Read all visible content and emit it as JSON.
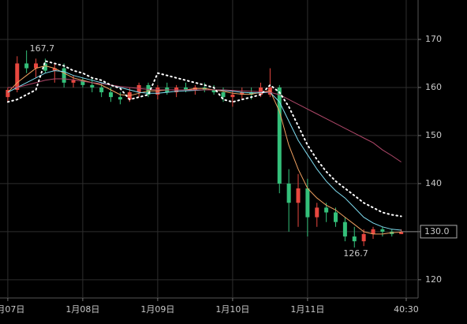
{
  "chart_data": {
    "type": "candlestick",
    "x": [
      0,
      3,
      6,
      9,
      12,
      15,
      18,
      21,
      24,
      27,
      30,
      33,
      36,
      39,
      42,
      45,
      48,
      51,
      54,
      57,
      60,
      63,
      66,
      69,
      72,
      75,
      78,
      81,
      84,
      87,
      90,
      93,
      96,
      99,
      102,
      105,
      108,
      111,
      114,
      117,
      120,
      123,
      126
    ],
    "open": [
      158,
      159.5,
      165,
      164,
      165,
      163.5,
      164,
      161,
      161.5,
      160.5,
      160,
      159,
      158,
      157.5,
      159,
      160.5,
      158.5,
      160,
      159,
      160,
      159.5,
      160,
      159.5,
      159,
      158,
      158.5,
      159,
      158.5,
      158.5,
      160,
      140,
      136,
      139,
      133,
      135,
      134,
      132,
      129,
      128,
      129.5,
      130.5,
      130,
      129.5
    ],
    "high": [
      160,
      166.5,
      167.7,
      166,
      166,
      165,
      165,
      162.5,
      162,
      162,
      161,
      160,
      159,
      160,
      161,
      161,
      160.5,
      161,
      160.5,
      161,
      160.5,
      161,
      160.5,
      160,
      159.5,
      160,
      160,
      161,
      164,
      160.5,
      143,
      142,
      141,
      136,
      136,
      135,
      133,
      131,
      130.5,
      131,
      131,
      130.5,
      130.5
    ],
    "low": [
      157,
      159,
      163,
      162,
      163,
      161,
      160,
      160,
      160,
      159,
      158,
      157,
      156.5,
      157,
      158,
      158,
      157.5,
      158.5,
      158,
      159,
      158.5,
      159,
      158.5,
      157,
      156,
      157.5,
      157.5,
      158,
      158,
      138,
      130,
      131,
      129,
      131,
      132,
      131,
      128,
      126.7,
      127,
      128.5,
      129,
      129,
      129.5
    ],
    "close": [
      159.5,
      165,
      164,
      165,
      163.5,
      164,
      161,
      161.5,
      160.5,
      160,
      159,
      158,
      157.5,
      159,
      160.5,
      158.5,
      160,
      159,
      160,
      159.5,
      160,
      159.5,
      159,
      158,
      158.5,
      159,
      158.5,
      160,
      160,
      140,
      136,
      139,
      133,
      135,
      134,
      132,
      129,
      128,
      129.5,
      130.5,
      130,
      129.5,
      130
    ],
    "up_color": "#e8473f",
    "down_color": "#34c07a",
    "lines": [
      {
        "color": "#f0a060",
        "style": "solid",
        "values": [
          159,
          161,
          162.5,
          164,
          164.5,
          164,
          163,
          162,
          161.5,
          161,
          160.5,
          159.5,
          158.5,
          158.3,
          158.8,
          159.3,
          159.3,
          159.5,
          159.5,
          159.5,
          159.8,
          159.8,
          159.5,
          159.2,
          158.8,
          158.6,
          158.6,
          159,
          159.3,
          155,
          148,
          143,
          139,
          137,
          135.5,
          134.5,
          133,
          131.5,
          130,
          129.5,
          129.5,
          129.8,
          129.9
        ]
      },
      {
        "color": "#7fdcf0",
        "style": "solid",
        "values": [
          159,
          160,
          161,
          162,
          163,
          163.5,
          163.3,
          162.5,
          162,
          161.5,
          161,
          160.5,
          160,
          159.5,
          159,
          158.8,
          158.8,
          159,
          159.2,
          159.3,
          159.4,
          159.5,
          159.5,
          159.4,
          159.2,
          159,
          158.9,
          158.9,
          159,
          157,
          153,
          149,
          146,
          143,
          140.5,
          138.5,
          137,
          135,
          133,
          131.8,
          131,
          130.5,
          130.3
        ]
      },
      {
        "color": "#b0486a",
        "style": "solid",
        "values": [
          160,
          160,
          160.5,
          161,
          161.5,
          161.8,
          161.8,
          161.6,
          161.3,
          161,
          160.8,
          160.5,
          160.2,
          160,
          159.8,
          159.6,
          159.5,
          159.5,
          159.5,
          159.5,
          159.5,
          159.5,
          159.5,
          159.5,
          159.4,
          159.3,
          159.2,
          159.1,
          159,
          158.5,
          157.5,
          156.5,
          155.5,
          154.5,
          153.5,
          152.5,
          151.5,
          150.5,
          149.5,
          148.5,
          147,
          145.8,
          144.5
        ]
      },
      {
        "color": "#ffffff",
        "style": "dotted",
        "values": [
          157,
          157.5,
          158.5,
          159.5,
          165.5,
          165,
          164.5,
          163.5,
          163,
          162,
          161.5,
          160.5,
          159.8,
          157.5,
          158,
          158.5,
          163,
          162.5,
          162,
          161.5,
          161,
          160.5,
          160,
          157.5,
          157,
          157.5,
          158,
          158.5,
          160.5,
          159,
          156,
          152,
          148,
          145,
          142.5,
          140.5,
          139,
          137.5,
          136,
          135,
          134,
          133.5,
          133.2
        ]
      }
    ],
    "xlim": [
      -2.5,
      131.4
    ],
    "xticks": [
      {
        "value": 0,
        "label": "1月07日"
      },
      {
        "value": 24,
        "label": "1月08日"
      },
      {
        "value": 48,
        "label": "1月09日"
      },
      {
        "value": 72,
        "label": "1月10日"
      },
      {
        "value": 96,
        "label": "1月11日"
      },
      {
        "value": 127.6,
        "label": "40:30"
      }
    ],
    "ylim": [
      116.2,
      178.2
    ],
    "yticks": [
      120,
      130,
      140,
      150,
      160,
      170
    ],
    "grid": true,
    "last_price": {
      "value": 130,
      "label": "130.0"
    },
    "high_label_index": 2,
    "low_label_index": 37
  }
}
